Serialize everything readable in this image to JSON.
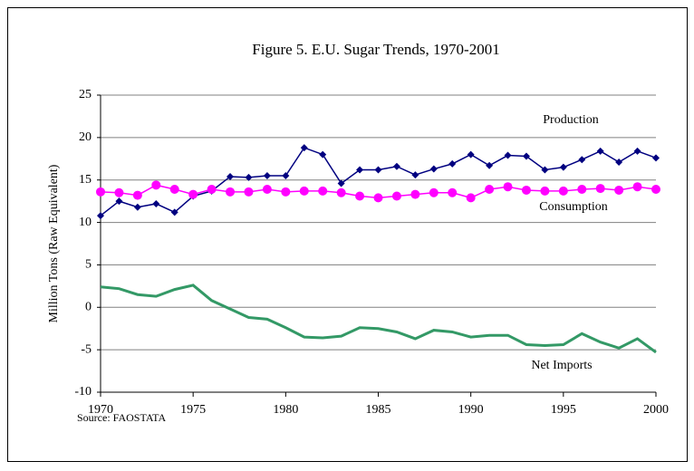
{
  "chart_data": {
    "type": "line",
    "title": "Figure 5. E.U. Sugar Trends, 1970-2001",
    "y_label": "Million Tons (Raw Equivalent)",
    "source": "Source: FAOSTATA",
    "x": [
      1970,
      1971,
      1972,
      1973,
      1974,
      1975,
      1976,
      1977,
      1978,
      1979,
      1980,
      1981,
      1982,
      1983,
      1984,
      1985,
      1986,
      1987,
      1988,
      1989,
      1990,
      1991,
      1992,
      1993,
      1994,
      1995,
      1996,
      1997,
      1998,
      1999,
      2000
    ],
    "series": [
      {
        "name": "Production",
        "color": "#000080",
        "marker": "diamond",
        "values": [
          10.8,
          12.5,
          11.8,
          12.2,
          11.2,
          13.1,
          13.7,
          15.4,
          15.3,
          15.5,
          15.5,
          18.8,
          18.0,
          14.6,
          16.2,
          16.2,
          16.6,
          15.6,
          16.3,
          16.9,
          18.0,
          16.7,
          17.9,
          17.8,
          16.2,
          16.5,
          17.4,
          18.4,
          17.1,
          18.4,
          17.6
        ]
      },
      {
        "name": "Consumption",
        "color": "#ff00ff",
        "marker": "circle",
        "values": [
          13.6,
          13.5,
          13.2,
          14.4,
          13.9,
          13.3,
          13.9,
          13.6,
          13.6,
          13.9,
          13.6,
          13.7,
          13.7,
          13.5,
          13.1,
          12.9,
          13.1,
          13.3,
          13.5,
          13.5,
          12.9,
          13.9,
          14.2,
          13.8,
          13.7,
          13.7,
          13.9,
          14.0,
          13.8,
          14.2,
          13.9
        ]
      },
      {
        "name": "Net Imports",
        "color": "#339966",
        "marker": "none",
        "values": [
          2.4,
          2.2,
          1.5,
          1.3,
          2.1,
          2.6,
          0.8,
          -0.2,
          -1.2,
          -1.4,
          -2.4,
          -3.5,
          -3.6,
          -3.4,
          -2.4,
          -2.5,
          -2.9,
          -3.7,
          -2.7,
          -2.9,
          -3.5,
          -3.3,
          -3.3,
          -4.4,
          -4.5,
          -4.4,
          -3.1,
          -4.1,
          -4.8,
          -3.7,
          -5.3
        ]
      }
    ],
    "xlim": [
      1970,
      2000
    ],
    "xticks": [
      1970,
      1975,
      1980,
      1985,
      1990,
      1995,
      2000
    ],
    "ylim": [
      -10,
      25
    ],
    "yticks": [
      -10,
      -5,
      0,
      5,
      10,
      15,
      20,
      25
    ],
    "grid": true
  }
}
